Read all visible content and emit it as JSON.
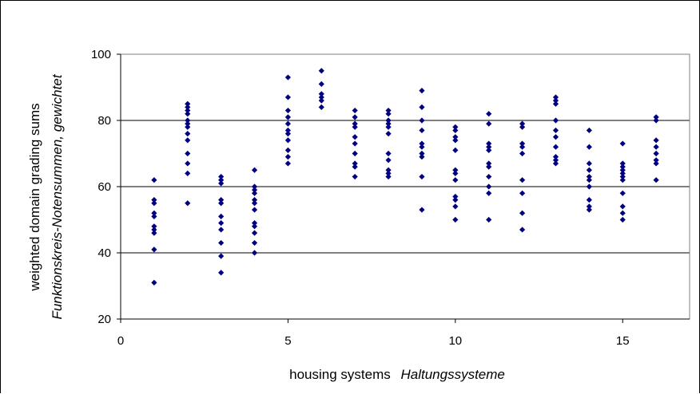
{
  "chart_data": {
    "type": "scatter",
    "xlabel": "housing systems",
    "xlabel_de": "Haltungssysteme",
    "ylabel": "weighted domain grading sums",
    "ylabel_de": "Funktionskreis-Notensummen, gewichtet",
    "xlim": [
      0,
      17
    ],
    "ylim": [
      20,
      100
    ],
    "x_ticks": [
      0,
      5,
      10,
      15
    ],
    "y_ticks": [
      20,
      40,
      60,
      80,
      100
    ],
    "x_tick_labels": [
      "0",
      "5",
      "10",
      "15"
    ],
    "y_tick_labels": [
      "20",
      "40",
      "60",
      "80",
      "100"
    ],
    "grid": "horizontal",
    "marker_color": "#000080",
    "series": [
      {
        "points": [
          [
            1,
            62
          ],
          [
            1,
            56
          ],
          [
            1,
            55
          ],
          [
            1,
            52
          ],
          [
            1,
            51
          ],
          [
            1,
            48
          ],
          [
            1,
            47
          ],
          [
            1,
            46
          ],
          [
            1,
            41
          ],
          [
            1,
            31
          ],
          [
            2,
            85
          ],
          [
            2,
            84
          ],
          [
            2,
            83
          ],
          [
            2,
            82
          ],
          [
            2,
            80
          ],
          [
            2,
            79
          ],
          [
            2,
            78
          ],
          [
            2,
            76
          ],
          [
            2,
            74
          ],
          [
            2,
            70
          ],
          [
            2,
            67
          ],
          [
            2,
            64
          ],
          [
            2,
            55
          ],
          [
            3,
            63
          ],
          [
            3,
            62
          ],
          [
            3,
            61
          ],
          [
            3,
            56
          ],
          [
            3,
            55
          ],
          [
            3,
            51
          ],
          [
            3,
            49
          ],
          [
            3,
            47
          ],
          [
            3,
            43
          ],
          [
            3,
            39
          ],
          [
            3,
            34
          ],
          [
            4,
            65
          ],
          [
            4,
            60
          ],
          [
            4,
            59
          ],
          [
            4,
            58
          ],
          [
            4,
            56
          ],
          [
            4,
            55
          ],
          [
            4,
            53
          ],
          [
            4,
            49
          ],
          [
            4,
            48
          ],
          [
            4,
            46
          ],
          [
            4,
            43
          ],
          [
            4,
            40
          ],
          [
            5,
            93
          ],
          [
            5,
            87
          ],
          [
            5,
            83
          ],
          [
            5,
            81
          ],
          [
            5,
            79
          ],
          [
            5,
            77
          ],
          [
            5,
            76
          ],
          [
            5,
            74
          ],
          [
            5,
            71
          ],
          [
            5,
            69
          ],
          [
            5,
            67
          ],
          [
            6,
            95
          ],
          [
            6,
            91
          ],
          [
            6,
            88
          ],
          [
            6,
            87
          ],
          [
            6,
            86
          ],
          [
            6,
            84
          ],
          [
            7,
            83
          ],
          [
            7,
            81
          ],
          [
            7,
            79
          ],
          [
            7,
            78
          ],
          [
            7,
            75
          ],
          [
            7,
            73
          ],
          [
            7,
            70
          ],
          [
            7,
            67
          ],
          [
            7,
            66
          ],
          [
            7,
            63
          ],
          [
            8,
            83
          ],
          [
            8,
            82
          ],
          [
            8,
            80
          ],
          [
            8,
            79
          ],
          [
            8,
            78
          ],
          [
            8,
            76
          ],
          [
            8,
            70
          ],
          [
            8,
            68
          ],
          [
            8,
            65
          ],
          [
            8,
            64
          ],
          [
            8,
            63
          ],
          [
            9,
            89
          ],
          [
            9,
            84
          ],
          [
            9,
            80
          ],
          [
            9,
            77
          ],
          [
            9,
            73
          ],
          [
            9,
            72
          ],
          [
            9,
            70
          ],
          [
            9,
            69
          ],
          [
            9,
            63
          ],
          [
            9,
            53
          ],
          [
            10,
            78
          ],
          [
            10,
            77
          ],
          [
            10,
            75
          ],
          [
            10,
            74
          ],
          [
            10,
            71
          ],
          [
            10,
            65
          ],
          [
            10,
            64
          ],
          [
            10,
            62
          ],
          [
            10,
            57
          ],
          [
            10,
            56
          ],
          [
            10,
            54
          ],
          [
            10,
            50
          ],
          [
            11,
            82
          ],
          [
            11,
            79
          ],
          [
            11,
            73
          ],
          [
            11,
            72
          ],
          [
            11,
            71
          ],
          [
            11,
            67
          ],
          [
            11,
            66
          ],
          [
            11,
            63
          ],
          [
            11,
            60
          ],
          [
            11,
            58
          ],
          [
            11,
            50
          ],
          [
            12,
            79
          ],
          [
            12,
            78
          ],
          [
            12,
            73
          ],
          [
            12,
            72
          ],
          [
            12,
            70
          ],
          [
            12,
            62
          ],
          [
            12,
            58
          ],
          [
            12,
            52
          ],
          [
            12,
            47
          ],
          [
            13,
            87
          ],
          [
            13,
            86
          ],
          [
            13,
            85
          ],
          [
            13,
            80
          ],
          [
            13,
            77
          ],
          [
            13,
            75
          ],
          [
            13,
            72
          ],
          [
            13,
            69
          ],
          [
            13,
            68
          ],
          [
            13,
            67
          ],
          [
            14,
            77
          ],
          [
            14,
            72
          ],
          [
            14,
            67
          ],
          [
            14,
            65
          ],
          [
            14,
            63
          ],
          [
            14,
            62
          ],
          [
            14,
            60
          ],
          [
            14,
            56
          ],
          [
            14,
            54
          ],
          [
            14,
            53
          ],
          [
            15,
            73
          ],
          [
            15,
            67
          ],
          [
            15,
            66
          ],
          [
            15,
            65
          ],
          [
            15,
            64
          ],
          [
            15,
            63
          ],
          [
            15,
            62
          ],
          [
            15,
            58
          ],
          [
            15,
            54
          ],
          [
            15,
            52
          ],
          [
            15,
            50
          ],
          [
            16,
            81
          ],
          [
            16,
            80
          ],
          [
            16,
            74
          ],
          [
            16,
            72
          ],
          [
            16,
            70
          ],
          [
            16,
            68
          ],
          [
            16,
            67
          ],
          [
            16,
            62
          ]
        ]
      }
    ]
  }
}
